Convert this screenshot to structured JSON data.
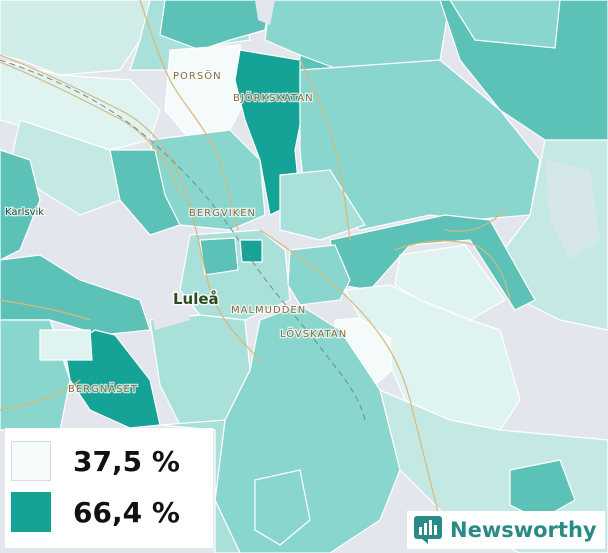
{
  "map": {
    "place_labels": {
      "porson": "PORSÖN",
      "bjorkskatan": "BJÖRKSKATAN",
      "karlsvik": "Karlsvik",
      "bergviken": "BERGVIKEN",
      "lulea": "Luleå",
      "malmudden": "MALMUDDEN",
      "lovskatan": "LÖVSKATAN",
      "bergnaset": "BERGNÄSET"
    },
    "colors": {
      "low": "#f4fbfa",
      "mid_light": "#c4e9e4",
      "mid": "#88d6cd",
      "mid_dark": "#5cc2b8",
      "high": "#14a396",
      "water": "#e4e6ee",
      "road": "#d9b77a"
    }
  },
  "legend": {
    "min_label": "37,5 %",
    "max_label": "66,4 %",
    "min_color": "#f4fbfa",
    "max_color": "#14a396"
  },
  "brand": {
    "name": "Newsworthy",
    "icon": "newsworthy-logo-icon"
  }
}
